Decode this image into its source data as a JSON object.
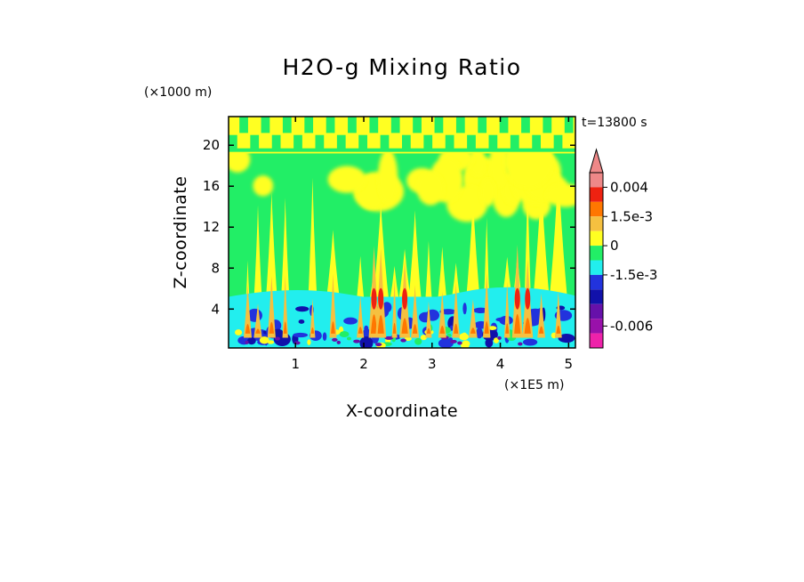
{
  "colors": {
    "orange_light": "#f5c040",
    "yellow": "#ffff22",
    "green": "#22ee66",
    "cyan": "#22eeee",
    "blue": "#2233dd",
    "navy": "#1111aa",
    "purple": "#6611aa",
    "violet": "#9911aa",
    "magenta": "#ee22aa",
    "pink": "#ee8888",
    "red": "#ee2211",
    "orange": "#ff7700",
    "frame": "#000000"
  },
  "chart_data": {
    "type": "heatmap",
    "title": "H2O-g Mixing Ratio",
    "xlabel": "X-coordinate",
    "ylabel": "Z-coordinate",
    "x_scale_label": "(×1E5 m)",
    "y_scale_label": "(×1000 m)",
    "time_label": "t=13800 s",
    "xlim": [
      0.02,
      5.1
    ],
    "ylim": [
      0.2,
      22.8
    ],
    "x_ticks": [
      {
        "value": 1,
        "label": "1"
      },
      {
        "value": 2,
        "label": "2"
      },
      {
        "value": 3,
        "label": "3"
      },
      {
        "value": 4,
        "label": "4"
      },
      {
        "value": 5,
        "label": "5"
      }
    ],
    "y_ticks": [
      {
        "value": 4,
        "label": "4"
      },
      {
        "value": 8,
        "label": "8"
      },
      {
        "value": 12,
        "label": "12"
      },
      {
        "value": 16,
        "label": "16"
      },
      {
        "value": 20,
        "label": "20"
      }
    ],
    "colorbar": {
      "bins": [
        "pink",
        "red",
        "orange",
        "orange_light",
        "yellow",
        "green",
        "cyan",
        "blue",
        "navy",
        "purple",
        "violet",
        "magenta"
      ],
      "labels": [
        {
          "text": "0.004",
          "at_bin": 1
        },
        {
          "text": "1.5e-3",
          "at_bin": 3
        },
        {
          "text": "0",
          "at_bin": 5
        },
        {
          "text": "-1.5e-3",
          "at_bin": 7
        },
        {
          "text": "-0.006",
          "at_bin": 10.5
        }
      ]
    },
    "plumes_x": [
      0.3,
      0.45,
      0.65,
      0.85,
      1.25,
      1.55,
      1.95,
      2.15,
      2.25,
      2.45,
      2.6,
      2.75,
      2.95,
      3.15,
      3.35,
      3.6,
      3.8,
      4.1,
      4.25,
      4.4,
      4.6,
      4.85
    ],
    "deep_plumes_x": [
      2.15,
      2.25,
      2.6,
      4.25,
      4.4
    ]
  }
}
